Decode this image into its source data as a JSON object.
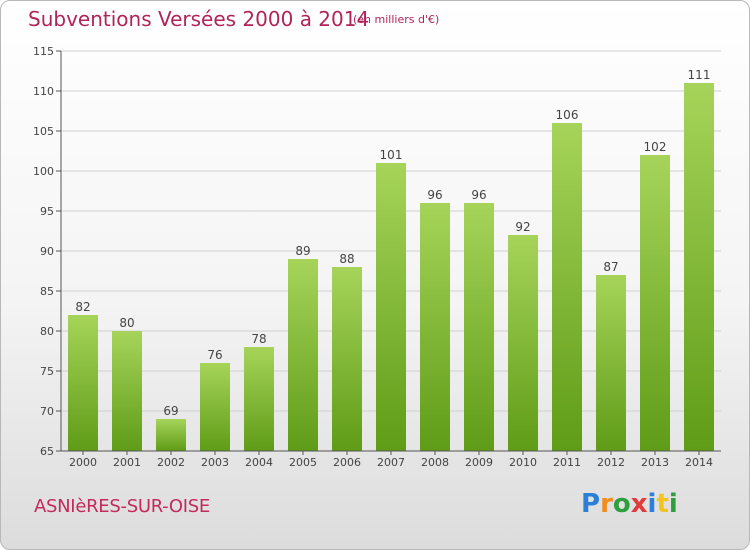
{
  "header": {
    "title": "Subventions Versées 2000 à 2014",
    "subtitle": "(en milliers d'€)"
  },
  "footer": {
    "commune": "ASNIèRES-SUR-OISE",
    "logo": {
      "text": "Proxiti",
      "letters": [
        {
          "char": "P",
          "color": "#2c7fd6"
        },
        {
          "char": "r",
          "color": "#f28c1e"
        },
        {
          "char": "o",
          "color": "#2e9e3e"
        },
        {
          "char": "x",
          "color": "#e23b3b"
        },
        {
          "char": "i",
          "color": "#2c7fd6"
        },
        {
          "char": "t",
          "color": "#f2c41e"
        },
        {
          "char": "i",
          "color": "#2e9e3e"
        }
      ]
    }
  },
  "colors": {
    "bar_top": "#a6d45a",
    "bar_bottom": "#5f9c17",
    "title": "#b0245a",
    "grid": "#d0d0d0"
  },
  "chart_data": {
    "type": "bar",
    "categories": [
      "2000",
      "2001",
      "2002",
      "2003",
      "2004",
      "2005",
      "2006",
      "2007",
      "2008",
      "2009",
      "2010",
      "2011",
      "2012",
      "2013",
      "2014"
    ],
    "values": [
      82,
      80,
      69,
      76,
      78,
      89,
      88,
      101,
      96,
      96,
      92,
      106,
      87,
      102,
      111
    ],
    "ylim": [
      65,
      115
    ],
    "yticks": [
      65,
      70,
      75,
      80,
      85,
      90,
      95,
      100,
      105,
      110,
      115
    ],
    "grid": true,
    "xlabel": "",
    "ylabel": ""
  }
}
